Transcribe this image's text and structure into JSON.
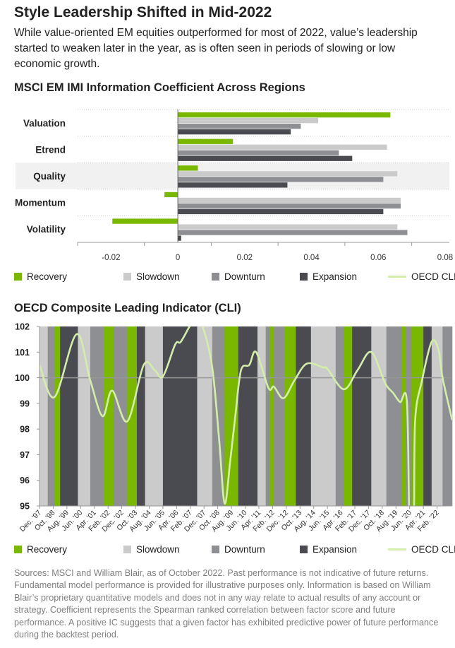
{
  "title": "Style Leadership Shifted in Mid-2022",
  "subtitle": "While value-oriented EM equities outperformed for most of 2022, value’s leadership started to weaken later in the year, as is often seen in periods of slowing or low economic growth.",
  "colors": {
    "Recovery": "#7ab800",
    "Slowdown": "#cbcbcb",
    "Downturn": "#8e8f92",
    "Expansion": "#4a4b50",
    "OECD CLI Total": "#d4edaa"
  },
  "legend": [
    "Recovery",
    "Slowdown",
    "Downturn",
    "Expansion",
    "OECD CLI Total"
  ],
  "footer": "Sources: MSCI and William Blair, as of October 2022. Past performance is not indicative of future returns. Fundamental model performance is provided for illustrative purposes only. Information is based on William Blair’s proprietary quantitative models and does not in any way relate to actual results of any account or strategy. Coefficient represents the Spearman ranked correlation between factor score and future performance. A positive IC suggests that a given factor has exhibited predictive power of future performance during the backtest period.",
  "chart_data": [
    {
      "type": "bar",
      "orientation": "horizontal",
      "title": "MSCI EM IMI Information Coefficient Across Regions",
      "categories": [
        "Valuation",
        "Etrend",
        "Quality",
        "Momentum",
        "Volatility"
      ],
      "highlighted_category": "Quality",
      "series": [
        {
          "name": "Recovery",
          "values": [
            0.0636,
            0.0165,
            0.006,
            -0.004,
            -0.0196
          ]
        },
        {
          "name": "Slowdown",
          "values": [
            0.042,
            0.0626,
            0.0657,
            0.0667,
            0.0657
          ]
        },
        {
          "name": "Downturn",
          "values": [
            0.0368,
            0.0482,
            0.0615,
            0.0667,
            0.0687
          ]
        },
        {
          "name": "Expansion",
          "values": [
            0.0338,
            0.0522,
            0.0328,
            0.0615,
            0.001
          ]
        }
      ],
      "xlim": [
        -0.03,
        0.08
      ],
      "xticklabels": [
        "-0.02",
        "0",
        "0.02",
        "0.04",
        "0.06",
        "0.08"
      ],
      "xtick_values": [
        -0.02,
        0,
        0.02,
        0.04,
        0.06,
        0.08
      ],
      "grid": "dotted horizontal separators",
      "legend_position": "bottom"
    },
    {
      "type": "line",
      "title": "OECD Composite Leading Indicator (CLI)",
      "ylim": [
        95,
        102
      ],
      "yticks": [
        102,
        101,
        100,
        99,
        98,
        97,
        96,
        95
      ],
      "reference_line": 100,
      "xlim": [
        "1997-12",
        "2023-01"
      ],
      "xticklabels": [
        "Dec. '97",
        "Oct. '98",
        "Aug. '99",
        "Jun. '00",
        "Apr. '01",
        "Feb. '02",
        "Dec. '02",
        "Oct. '03",
        "Aug. '04",
        "Jun. '05",
        "Apr. '06",
        "Feb. '07",
        "Dec. '07",
        "Oct. '08",
        "Aug. '09",
        "Jun. '10",
        "Apr. '11",
        "Feb. '12",
        "Dec. '12",
        "Oct. '13",
        "Aug. '14",
        "Jun. '15",
        "Apr. '16",
        "Feb. '17",
        "Dec. '17",
        "Oct. '18",
        "Aug. '19",
        "Jun. '20",
        "Apr. '21",
        "Feb. '22"
      ],
      "regimes": [
        {
          "start": "1997-12",
          "end": "1998-06",
          "regime": "Slowdown"
        },
        {
          "start": "1998-06",
          "end": "1998-11",
          "regime": "Downturn"
        },
        {
          "start": "1998-11",
          "end": "1999-03",
          "regime": "Recovery"
        },
        {
          "start": "1999-03",
          "end": "2000-04",
          "regime": "Expansion"
        },
        {
          "start": "2000-04",
          "end": "2001-01",
          "regime": "Slowdown"
        },
        {
          "start": "2001-01",
          "end": "2001-11",
          "regime": "Downturn"
        },
        {
          "start": "2001-11",
          "end": "2002-06",
          "regime": "Recovery"
        },
        {
          "start": "2002-06",
          "end": "2003-04",
          "regime": "Downturn"
        },
        {
          "start": "2003-04",
          "end": "2003-11",
          "regime": "Recovery"
        },
        {
          "start": "2003-11",
          "end": "2004-05",
          "regime": "Expansion"
        },
        {
          "start": "2004-05",
          "end": "2005-06",
          "regime": "Slowdown"
        },
        {
          "start": "2005-06",
          "end": "2007-07",
          "regime": "Expansion"
        },
        {
          "start": "2007-07",
          "end": "2008-06",
          "regime": "Slowdown"
        },
        {
          "start": "2008-06",
          "end": "2009-03",
          "regime": "Downturn"
        },
        {
          "start": "2009-03",
          "end": "2010-01",
          "regime": "Recovery"
        },
        {
          "start": "2010-01",
          "end": "2011-03",
          "regime": "Expansion"
        },
        {
          "start": "2011-03",
          "end": "2011-09",
          "regime": "Slowdown"
        },
        {
          "start": "2011-09",
          "end": "2011-12",
          "regime": "Downturn"
        },
        {
          "start": "2011-12",
          "end": "2012-03",
          "regime": "Recovery"
        },
        {
          "start": "2012-03",
          "end": "2012-11",
          "regime": "Downturn"
        },
        {
          "start": "2012-11",
          "end": "2013-07",
          "regime": "Recovery"
        },
        {
          "start": "2013-07",
          "end": "2014-06",
          "regime": "Expansion"
        },
        {
          "start": "2014-06",
          "end": "2015-12",
          "regime": "Slowdown"
        },
        {
          "start": "2015-12",
          "end": "2016-06",
          "regime": "Downturn"
        },
        {
          "start": "2016-06",
          "end": "2016-12",
          "regime": "Recovery"
        },
        {
          "start": "2016-12",
          "end": "2018-02",
          "regime": "Expansion"
        },
        {
          "start": "2018-02",
          "end": "2019-01",
          "regime": "Slowdown"
        },
        {
          "start": "2019-01",
          "end": "2019-12",
          "regime": "Downturn"
        },
        {
          "start": "2019-12",
          "end": "2020-03",
          "regime": "Recovery"
        },
        {
          "start": "2020-03",
          "end": "2020-07",
          "regime": "Downturn"
        },
        {
          "start": "2020-07",
          "end": "2021-04",
          "regime": "Recovery"
        },
        {
          "start": "2021-04",
          "end": "2021-10",
          "regime": "Expansion"
        },
        {
          "start": "2021-10",
          "end": "2022-06",
          "regime": "Slowdown"
        },
        {
          "start": "2022-06",
          "end": "2023-01",
          "regime": "Downturn"
        }
      ],
      "series": [
        {
          "name": "OECD CLI Total",
          "points": [
            [
              "1997-12",
              100.5
            ],
            [
              "1998-11",
              99.25
            ],
            [
              "2000-03",
              101.7
            ],
            [
              "2001-01",
              99.9
            ],
            [
              "2001-10",
              98.5
            ],
            [
              "2002-05",
              99.5
            ],
            [
              "2003-04",
              98.3
            ],
            [
              "2004-04",
              100.5
            ],
            [
              "2004-12",
              100.3
            ],
            [
              "2005-06",
              100.05
            ],
            [
              "2006-03",
              101.3
            ],
            [
              "2006-07",
              101.4
            ],
            [
              "2007-02",
              102.05
            ],
            [
              "2007-06",
              102.3
            ],
            [
              "2007-11",
              102.0
            ],
            [
              "2008-06",
              100.4
            ],
            [
              "2008-11",
              97.6
            ],
            [
              "2009-03",
              95.1
            ],
            [
              "2009-07",
              96.7
            ],
            [
              "2009-11",
              98.6
            ],
            [
              "2010-03",
              100.3
            ],
            [
              "2010-09",
              100.5
            ],
            [
              "2011-02",
              101.0
            ],
            [
              "2011-11",
              99.6
            ],
            [
              "2012-03",
              99.65
            ],
            [
              "2012-10",
              99.2
            ],
            [
              "2013-06",
              99.9
            ],
            [
              "2014-03",
              100.55
            ],
            [
              "2015-03",
              100.4
            ],
            [
              "2015-06",
              100.35
            ],
            [
              "2016-06",
              99.55
            ],
            [
              "2017-04",
              100.3
            ],
            [
              "2018-02",
              101.0
            ],
            [
              "2018-12",
              99.8
            ],
            [
              "2019-06",
              99.4
            ],
            [
              "2019-11",
              99.05
            ],
            [
              "2020-04",
              99.05
            ],
            [
              "2020-06",
              94.0
            ],
            [
              "2020-09",
              94.5
            ],
            [
              "2020-10",
              98.35
            ],
            [
              "2021-03",
              99.9
            ],
            [
              "2021-10",
              101.4
            ],
            [
              "2022-03",
              101.1
            ],
            [
              "2022-06",
              100.0
            ],
            [
              "2023-01",
              98.35
            ]
          ]
        }
      ],
      "legend_position": "bottom"
    }
  ]
}
